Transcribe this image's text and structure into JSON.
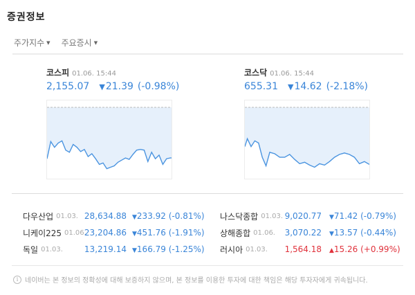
{
  "title": "증권정보",
  "tabs": [
    {
      "label": "주가지수",
      "icon": "caret-down-icon"
    },
    {
      "label": "주요증시",
      "icon": "caret-down-icon"
    }
  ],
  "indices": [
    {
      "name": "코스피",
      "time": "01.06. 15:44",
      "price": "2,155.07",
      "arrow": "▼",
      "change": "21.39",
      "percent": "(-0.98%)",
      "color": "#3a85d8"
    },
    {
      "name": "코스닥",
      "time": "01.06. 15:44",
      "price": "655.31",
      "arrow": "▼",
      "change": "14.62",
      "percent": "(-2.18%)",
      "color": "#3a85d8"
    }
  ],
  "chart_data": [
    {
      "type": "area",
      "title": "코스피 intraday",
      "baseline_dashed": true,
      "note": "normalized y (0=top,1=bottom of plot); dashed line = previous close",
      "x": [
        0,
        3,
        6,
        9,
        12,
        15,
        18,
        21,
        24,
        27,
        30,
        33,
        36,
        39,
        42,
        45,
        48,
        51,
        54,
        57,
        60,
        63,
        66,
        69,
        72,
        75,
        78,
        81,
        84,
        87,
        90,
        93,
        96,
        99,
        100
      ],
      "values": [
        0.72,
        0.48,
        0.56,
        0.5,
        0.47,
        0.6,
        0.63,
        0.52,
        0.56,
        0.62,
        0.59,
        0.69,
        0.65,
        0.72,
        0.8,
        0.78,
        0.86,
        0.84,
        0.82,
        0.77,
        0.74,
        0.71,
        0.73,
        0.66,
        0.6,
        0.59,
        0.6,
        0.76,
        0.63,
        0.72,
        0.67,
        0.8,
        0.72,
        0.71,
        0.71
      ],
      "line_color": "#4a94e0",
      "fill_color": "#e6f0fb"
    },
    {
      "type": "area",
      "title": "코스닥 intraday",
      "baseline_dashed": true,
      "note": "normalized y (0=top,1=bottom of plot); dashed line = previous close",
      "x": [
        0,
        2,
        5,
        8,
        11,
        14,
        17,
        20,
        24,
        28,
        32,
        36,
        40,
        44,
        48,
        52,
        56,
        60,
        64,
        68,
        72,
        76,
        80,
        84,
        88,
        92,
        96,
        100
      ],
      "values": [
        0.55,
        0.44,
        0.55,
        0.47,
        0.5,
        0.7,
        0.82,
        0.63,
        0.65,
        0.7,
        0.7,
        0.66,
        0.73,
        0.79,
        0.77,
        0.81,
        0.84,
        0.79,
        0.81,
        0.76,
        0.7,
        0.66,
        0.64,
        0.66,
        0.7,
        0.79,
        0.76,
        0.8
      ],
      "line_color": "#4a94e0",
      "fill_color": "#e6f0fb"
    }
  ],
  "markets": {
    "left": [
      {
        "name": "다우산업",
        "date": "01.03.",
        "price": "28,634.88",
        "arrow": "▼",
        "change": "233.92",
        "percent": "(-0.81%)",
        "dir": "down"
      },
      {
        "name": "니케이225",
        "date": "01.06.",
        "price": "23,204.86",
        "arrow": "▼",
        "change": "451.76",
        "percent": "(-1.91%)",
        "dir": "down"
      },
      {
        "name": "독일",
        "date": "01.03.",
        "price": "13,219.14",
        "arrow": "▼",
        "change": "166.79",
        "percent": "(-1.25%)",
        "dir": "down"
      }
    ],
    "right": [
      {
        "name": "나스닥종합",
        "date": "01.03.",
        "price": "9,020.77",
        "arrow": "▼",
        "change": "71.42",
        "percent": "(-0.79%)",
        "dir": "down"
      },
      {
        "name": "상해종합",
        "date": "01.06.",
        "price": "3,070.22",
        "arrow": "▼",
        "change": "13.57",
        "percent": "(-0.44%)",
        "dir": "down"
      },
      {
        "name": "러시아",
        "date": "01.03.",
        "price": "1,564.18",
        "arrow": "▲",
        "change": "15.26",
        "percent": "(+0.99%)",
        "dir": "up"
      }
    ]
  },
  "notice": {
    "icon": "info-icon",
    "icon_glyph": "i",
    "text": "네이버는 본 정보의 정확성에 대해 보증하지 않으며, 본 정보를 이용한 투자에 대한 책임은 해당 투자자에게 귀속됩니다."
  },
  "colors": {
    "down": "#3a85d8",
    "up": "#e0323c"
  }
}
